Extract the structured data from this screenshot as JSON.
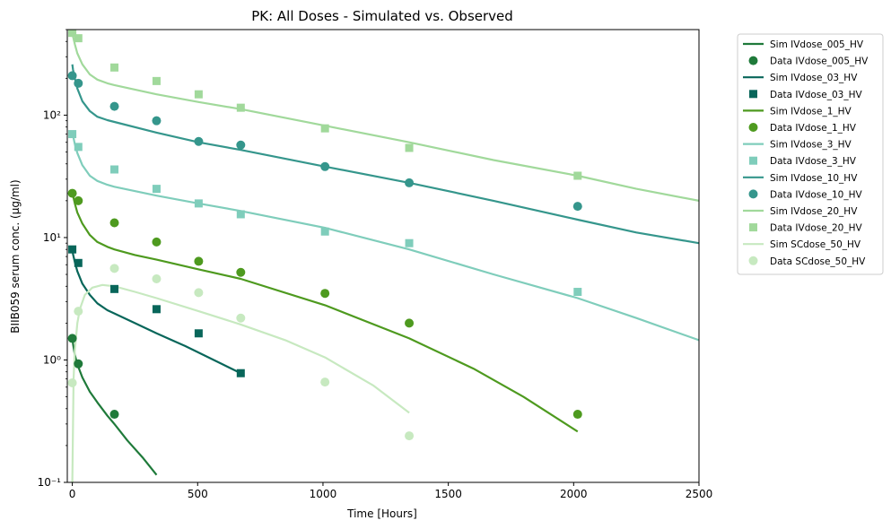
{
  "chart_data": {
    "type": "line",
    "title": "PK: All Doses - Simulated vs. Observed",
    "xlabel": "Time [Hours]",
    "ylabel": "BIIB059 serum conc. (µg/ml)",
    "xlim": [
      -20,
      2500
    ],
    "ylim": [
      0.1,
      500
    ],
    "yscale": "log",
    "grid": false,
    "legend_position": "outside-right",
    "x_ticks": [
      0,
      500,
      1000,
      1500,
      2000,
      2500
    ],
    "x_tick_labels": [
      "0",
      "500",
      "1000",
      "1500",
      "2000",
      "2500"
    ],
    "y_ticks": [
      0.1,
      1,
      10,
      100
    ],
    "y_tick_labels": [
      "10⁻¹",
      "10⁰",
      "10¹",
      "10²"
    ],
    "series": [
      {
        "name": "IVdose_005_HV",
        "sim_label": "Sim IVdose_005_HV",
        "data_label": "Data IVdose_005_HV",
        "color": "#1f7a3a",
        "marker": "circle",
        "sim": {
          "x": [
            0,
            3,
            10,
            20,
            40,
            70,
            100,
            140,
            168,
            220,
            280,
            336
          ],
          "y": [
            1.6,
            1.35,
            1.1,
            0.92,
            0.72,
            0.55,
            0.45,
            0.35,
            0.3,
            0.22,
            0.16,
            0.115
          ]
        },
        "obs": {
          "x": [
            0,
            24,
            168
          ],
          "y": [
            1.5,
            0.93,
            0.36
          ]
        }
      },
      {
        "name": "IVdose_03_HV",
        "sim_label": "Sim IVdose_03_HV",
        "data_label": "Data IVdose_03_HV",
        "color": "#08665a",
        "marker": "square",
        "sim": {
          "x": [
            0,
            3,
            10,
            20,
            40,
            70,
            100,
            140,
            168,
            250,
            336,
            450,
            504,
            600,
            672
          ],
          "y": [
            8.0,
            7.3,
            6.3,
            5.3,
            4.2,
            3.4,
            2.9,
            2.55,
            2.4,
            2.0,
            1.65,
            1.3,
            1.15,
            0.92,
            0.78
          ]
        },
        "obs": {
          "x": [
            0,
            24,
            168,
            336,
            504,
            672
          ],
          "y": [
            8.0,
            6.2,
            3.8,
            2.6,
            1.65,
            0.78
          ]
        }
      },
      {
        "name": "IVdose_1_HV",
        "sim_label": "Sim IVdose_1_HV",
        "data_label": "Data IVdose_1_HV",
        "color": "#4e9a1f",
        "marker": "circle",
        "sim": {
          "x": [
            0,
            3,
            10,
            20,
            40,
            70,
            100,
            140,
            168,
            250,
            336,
            504,
            672,
            1008,
            1344,
            1600,
            1800,
            2016
          ],
          "y": [
            24,
            22,
            19,
            16,
            13,
            10.5,
            9.2,
            8.4,
            8.0,
            7.2,
            6.6,
            5.5,
            4.6,
            2.8,
            1.5,
            0.85,
            0.5,
            0.26
          ]
        },
        "obs": {
          "x": [
            0,
            24,
            168,
            336,
            504,
            672,
            1008,
            1344,
            2016
          ],
          "y": [
            23,
            20,
            13.2,
            9.2,
            6.4,
            5.2,
            3.5,
            2.0,
            0.36
          ]
        }
      },
      {
        "name": "IVdose_3_HV",
        "sim_label": "Sim IVdose_3_HV",
        "data_label": "Data IVdose_3_HV",
        "color": "#7fcdbb",
        "marker": "square",
        "sim": {
          "x": [
            0,
            3,
            10,
            20,
            40,
            70,
            100,
            140,
            168,
            336,
            504,
            672,
            1008,
            1344,
            1680,
            2016,
            2250,
            2500
          ],
          "y": [
            75,
            68,
            58,
            49,
            39,
            32,
            29,
            27,
            26,
            22,
            19,
            16.5,
            12,
            8.0,
            5.0,
            3.2,
            2.2,
            1.45
          ]
        },
        "obs": {
          "x": [
            0,
            24,
            168,
            336,
            504,
            672,
            1008,
            1344,
            2016
          ],
          "y": [
            70,
            55,
            36,
            25,
            19,
            15.5,
            11.2,
            9.0,
            3.6
          ]
        }
      },
      {
        "name": "IVdose_10_HV",
        "sim_label": "Sim IVdose_10_HV",
        "data_label": "Data IVdose_10_HV",
        "color": "#35968c",
        "marker": "circle",
        "sim": {
          "x": [
            0,
            3,
            10,
            20,
            40,
            70,
            100,
            140,
            168,
            336,
            504,
            672,
            1008,
            1344,
            1680,
            2016,
            2250,
            2500
          ],
          "y": [
            260,
            235,
            200,
            165,
            130,
            108,
            97,
            91,
            88,
            72,
            60,
            52,
            38,
            28,
            20,
            14,
            11,
            9.0
          ]
        },
        "obs": {
          "x": [
            0,
            24,
            168,
            336,
            504,
            672,
            1008,
            1344,
            2016
          ],
          "y": [
            210,
            182,
            118,
            90,
            61,
            57,
            38,
            28,
            18
          ]
        }
      },
      {
        "name": "IVdose_20_HV",
        "sim_label": "Sim IVdose_20_HV",
        "data_label": "Data IVdose_20_HV",
        "color": "#a1d99b",
        "marker": "square",
        "sim": {
          "x": [
            0,
            3,
            10,
            20,
            40,
            70,
            100,
            140,
            168,
            336,
            504,
            672,
            1008,
            1344,
            1680,
            2016,
            2250,
            2500
          ],
          "y": [
            480,
            440,
            380,
            320,
            260,
            215,
            195,
            182,
            176,
            148,
            128,
            112,
            82,
            60,
            43,
            32,
            25,
            20
          ]
        },
        "obs": {
          "x": [
            0,
            24,
            168,
            336,
            504,
            672,
            1008,
            1344,
            2016
          ],
          "y": [
            470,
            425,
            245,
            190,
            148,
            115,
            78,
            54,
            32
          ]
        }
      },
      {
        "name": "SCdose_50_HV",
        "sim_label": "Sim SCdose_50_HV",
        "data_label": "Data SCdose_50_HV",
        "color": "#c7e9c0",
        "marker": "circle",
        "sim": {
          "x": [
            0,
            5,
            10,
            20,
            30,
            50,
            80,
            120,
            168,
            250,
            336,
            504,
            672,
            850,
            1008,
            1200,
            1344
          ],
          "y": [
            0.1,
            0.7,
            1.2,
            2.0,
            2.6,
            3.4,
            3.9,
            4.1,
            4.0,
            3.6,
            3.2,
            2.5,
            1.95,
            1.45,
            1.05,
            0.62,
            0.37
          ]
        },
        "obs": {
          "x": [
            0,
            24,
            168,
            336,
            504,
            672,
            1008,
            1344
          ],
          "y": [
            0.65,
            2.5,
            5.6,
            4.6,
            3.55,
            2.2,
            0.66,
            0.24
          ]
        }
      }
    ]
  }
}
